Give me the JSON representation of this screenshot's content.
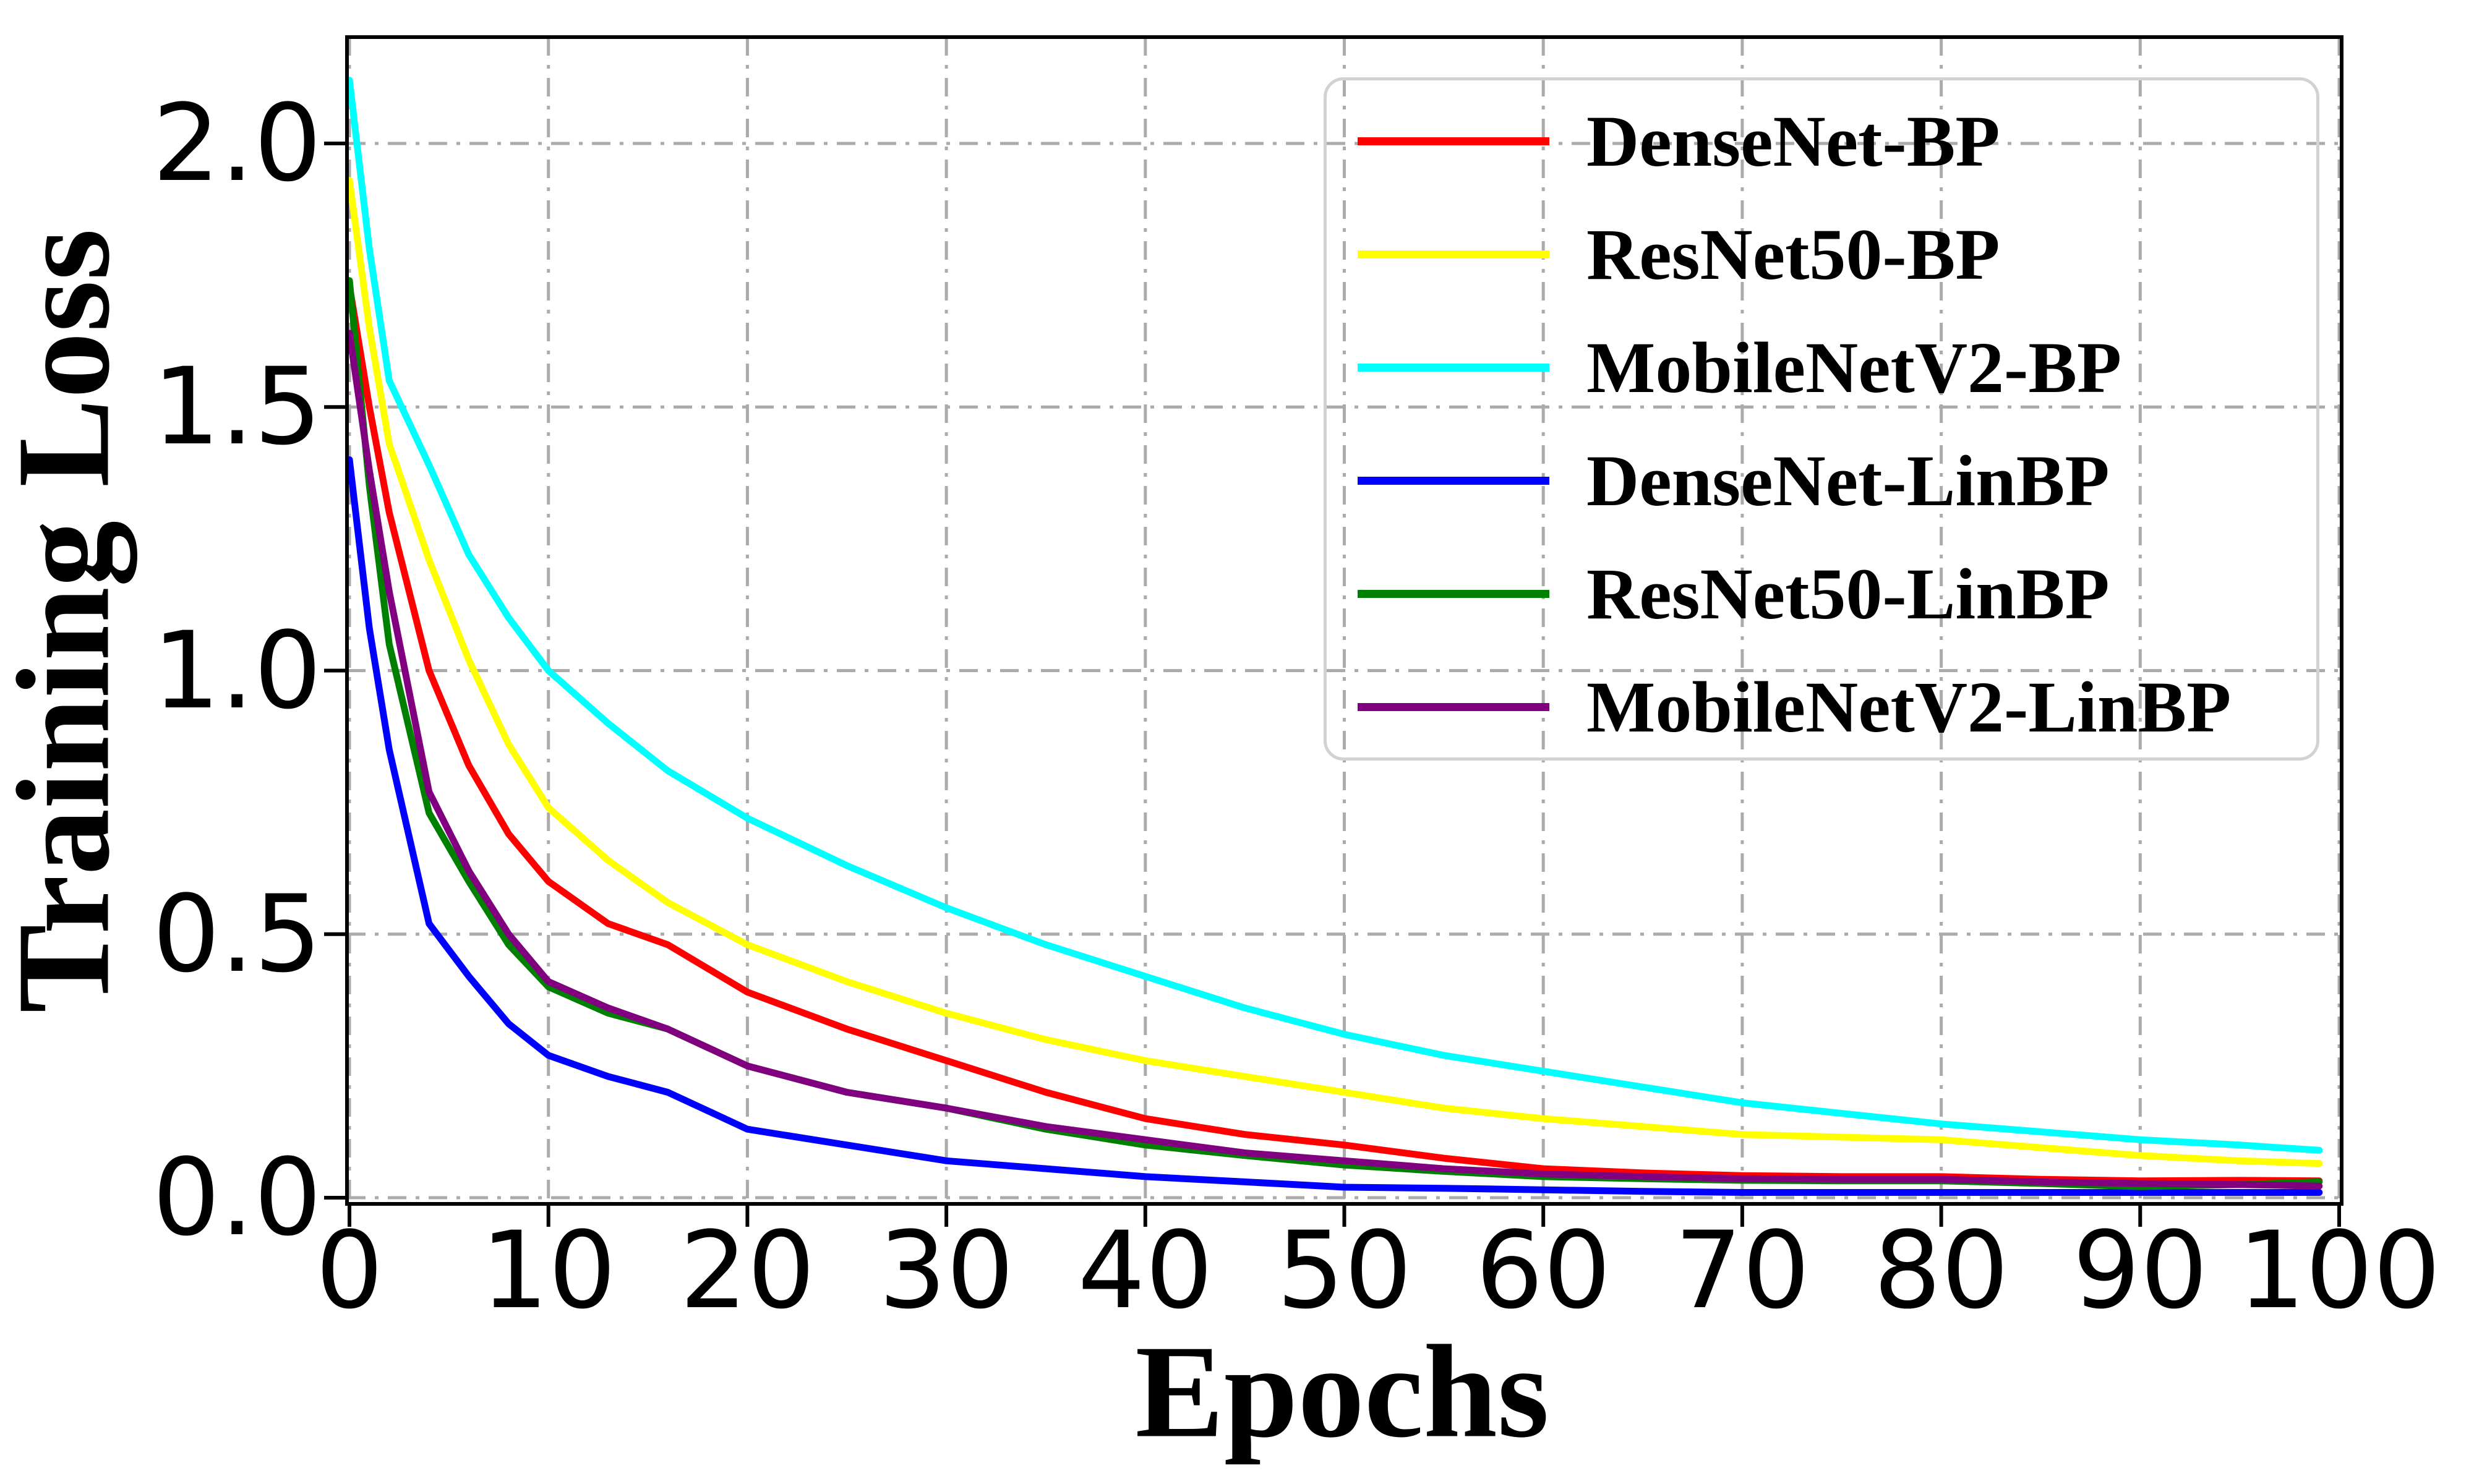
{
  "chart_data": {
    "type": "line",
    "title": "",
    "xlabel": "Epochs",
    "ylabel": "Training Loss",
    "xlim": [
      0,
      100
    ],
    "ylim": [
      0,
      2.2
    ],
    "x_ticks": [
      0,
      10,
      20,
      30,
      40,
      50,
      60,
      70,
      80,
      90,
      100
    ],
    "x_tick_labels": [
      "0",
      "10",
      "20",
      "30",
      "40",
      "50",
      "60",
      "70",
      "80",
      "90",
      "100"
    ],
    "y_ticks": [
      0.0,
      0.5,
      1.0,
      1.5,
      2.0
    ],
    "y_tick_labels": [
      "0.0",
      "0.5",
      "1.0",
      "1.5",
      "2.0"
    ],
    "grid": true,
    "grid_style": "dash-dot",
    "grid_color": "#ababab",
    "axis_color": "#000000",
    "legend_position": "upper right",
    "x": [
      0,
      1,
      2,
      4,
      6,
      8,
      10,
      13,
      16,
      20,
      25,
      30,
      35,
      40,
      45,
      50,
      55,
      60,
      65,
      70,
      75,
      80,
      85,
      90,
      95,
      99
    ],
    "series": [
      {
        "name": "DenseNet-BP",
        "color": "#ff0000",
        "values": [
          1.73,
          1.5,
          1.3,
          1.0,
          0.82,
          0.69,
          0.6,
          0.52,
          0.48,
          0.39,
          0.32,
          0.26,
          0.2,
          0.15,
          0.12,
          0.1,
          0.075,
          0.055,
          0.047,
          0.042,
          0.04,
          0.04,
          0.035,
          0.032,
          0.033,
          0.032
        ]
      },
      {
        "name": "ResNet50-BP",
        "color": "#ffff00",
        "values": [
          1.93,
          1.65,
          1.43,
          1.21,
          1.02,
          0.86,
          0.74,
          0.64,
          0.56,
          0.48,
          0.41,
          0.35,
          0.3,
          0.26,
          0.23,
          0.2,
          0.17,
          0.15,
          0.135,
          0.12,
          0.115,
          0.11,
          0.095,
          0.08,
          0.07,
          0.065
        ]
      },
      {
        "name": "MobileNetV2-BP",
        "color": "#00ffff",
        "values": [
          2.12,
          1.8,
          1.55,
          1.39,
          1.22,
          1.1,
          1.0,
          0.9,
          0.81,
          0.72,
          0.63,
          0.55,
          0.48,
          0.42,
          0.36,
          0.31,
          0.27,
          0.24,
          0.21,
          0.18,
          0.16,
          0.14,
          0.125,
          0.11,
          0.1,
          0.09
        ]
      },
      {
        "name": "DenseNet-LinBP",
        "color": "#0000ff",
        "values": [
          1.4,
          1.08,
          0.85,
          0.52,
          0.42,
          0.33,
          0.27,
          0.23,
          0.2,
          0.13,
          0.1,
          0.07,
          0.055,
          0.04,
          0.03,
          0.02,
          0.018,
          0.015,
          0.012,
          0.01,
          0.01,
          0.01,
          0.01,
          0.01,
          0.01,
          0.01
        ]
      },
      {
        "name": "ResNet50-LinBP",
        "color": "#008000",
        "values": [
          1.74,
          1.35,
          1.05,
          0.73,
          0.6,
          0.48,
          0.4,
          0.35,
          0.32,
          0.25,
          0.2,
          0.17,
          0.13,
          0.1,
          0.08,
          0.062,
          0.05,
          0.04,
          0.036,
          0.033,
          0.032,
          0.032,
          0.027,
          0.021,
          0.025,
          0.03
        ]
      },
      {
        "name": "MobileNetV2-LinBP",
        "color": "#800080",
        "values": [
          1.64,
          1.38,
          1.15,
          0.77,
          0.62,
          0.5,
          0.41,
          0.36,
          0.32,
          0.25,
          0.2,
          0.17,
          0.135,
          0.11,
          0.085,
          0.07,
          0.055,
          0.045,
          0.04,
          0.036,
          0.035,
          0.035,
          0.03,
          0.027,
          0.025,
          0.022
        ]
      }
    ]
  }
}
